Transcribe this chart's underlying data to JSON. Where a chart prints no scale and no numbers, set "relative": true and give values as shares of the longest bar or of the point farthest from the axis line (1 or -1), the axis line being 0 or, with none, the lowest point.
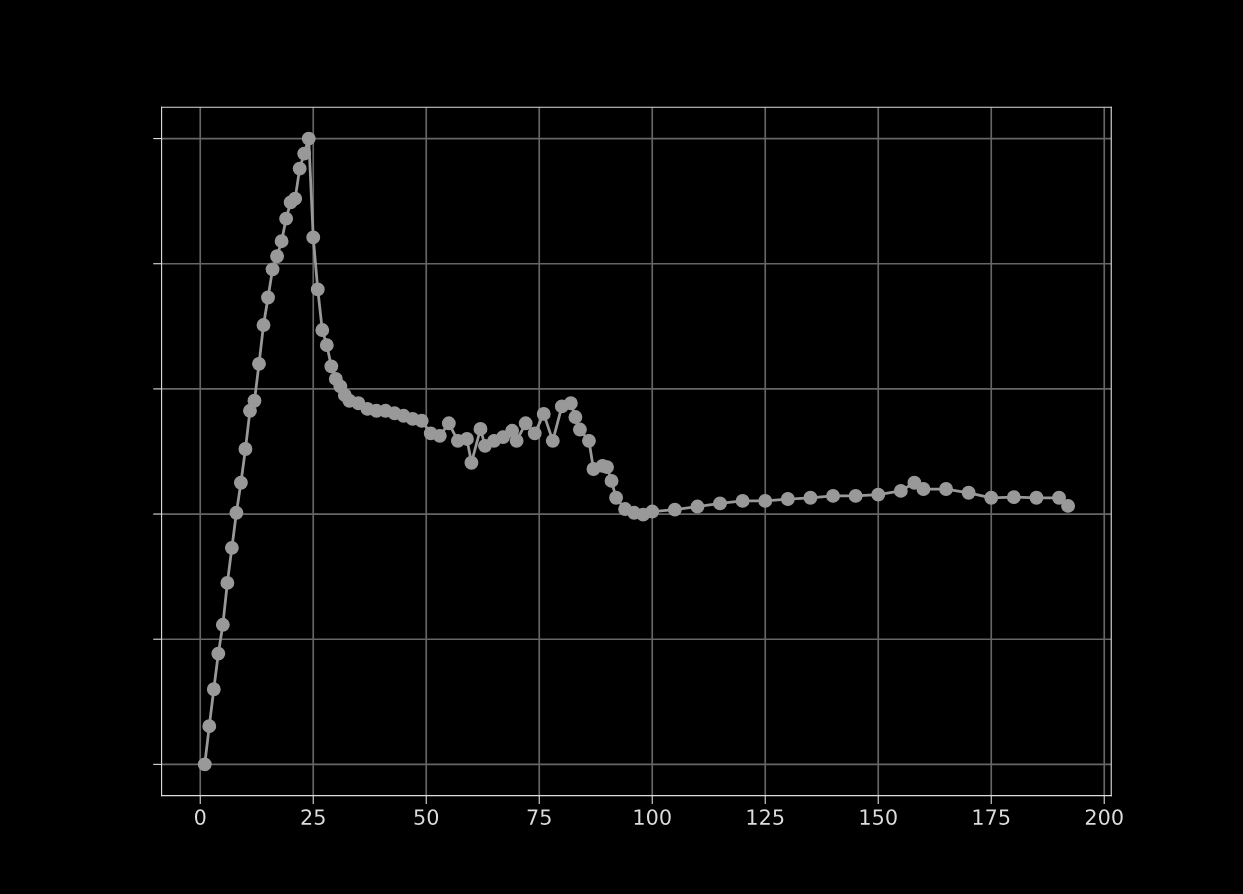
{
  "chart_data": {
    "type": "line",
    "relative": true,
    "marker": "circle",
    "line_style": "solid",
    "grid": true,
    "xlim": [
      -8.55,
      201.55
    ],
    "xticks": [
      0,
      25,
      50,
      75,
      100,
      125,
      150,
      175,
      200
    ],
    "series": [
      {
        "color": "#999999",
        "x": [
          1,
          2,
          3,
          4,
          5,
          6,
          7,
          8,
          9,
          10,
          11,
          12,
          13,
          14,
          15,
          16,
          17,
          18,
          19,
          20,
          21,
          22,
          23,
          24,
          25,
          26,
          27,
          28,
          29,
          30,
          31,
          32,
          33,
          35,
          37,
          39,
          41,
          43,
          45,
          47,
          49,
          51,
          53,
          55,
          57,
          59,
          60,
          62,
          63,
          65,
          67,
          69,
          70,
          72,
          74,
          76,
          78,
          80,
          82,
          83,
          84,
          86,
          87,
          89,
          90,
          91,
          92,
          94,
          96,
          98,
          100,
          105,
          110,
          115,
          120,
          125,
          130,
          135,
          140,
          145,
          150,
          155,
          158,
          160,
          165,
          170,
          175,
          180,
          185,
          190,
          192
        ],
        "values": [
          0,
          0.061,
          0.12,
          0.177,
          0.223,
          0.29,
          0.346,
          0.402,
          0.45,
          0.504,
          0.565,
          0.581,
          0.64,
          0.702,
          0.746,
          0.791,
          0.812,
          0.836,
          0.872,
          0.898,
          0.904,
          0.952,
          0.976,
          1,
          0.842,
          0.759,
          0.694,
          0.67,
          0.636,
          0.616,
          0.604,
          0.59,
          0.581,
          0.577,
          0.568,
          0.565,
          0.565,
          0.561,
          0.557,
          0.552,
          0.549,
          0.529,
          0.525,
          0.545,
          0.517,
          0.52,
          0.482,
          0.536,
          0.509,
          0.517,
          0.523,
          0.533,
          0.517,
          0.545,
          0.529,
          0.56,
          0.517,
          0.572,
          0.577,
          0.555,
          0.535,
          0.517,
          0.472,
          0.477,
          0.475,
          0.453,
          0.426,
          0.408,
          0.402,
          0.399,
          0.404,
          0.407,
          0.412,
          0.417,
          0.421,
          0.421,
          0.424,
          0.426,
          0.429,
          0.429,
          0.431,
          0.437,
          0.45,
          0.44,
          0.44,
          0.434,
          0.426,
          0.427,
          0.426,
          0.426,
          0.413
        ]
      }
    ]
  }
}
